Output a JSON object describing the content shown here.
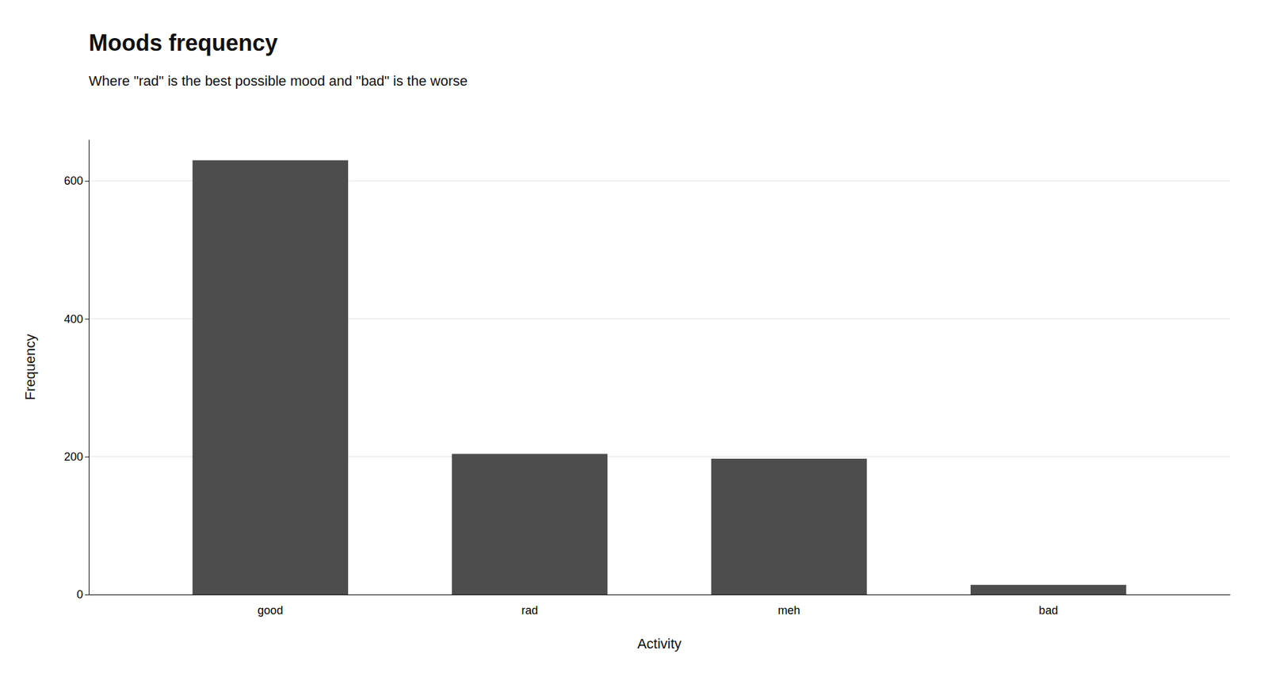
{
  "chart_data": {
    "type": "bar",
    "title": "Moods frequency",
    "subtitle": "Where \"rad\" is the best possible mood and \"bad\" is the worse",
    "categories": [
      "good",
      "rad",
      "meh",
      "bad"
    ],
    "values": [
      630,
      204,
      197,
      14
    ],
    "color": "#4d4d4d",
    "xlabel": "Activity",
    "ylabel": "Frequency",
    "ylim": [
      0,
      660
    ],
    "yticks": [
      0,
      200,
      400,
      600
    ],
    "grid": true
  }
}
